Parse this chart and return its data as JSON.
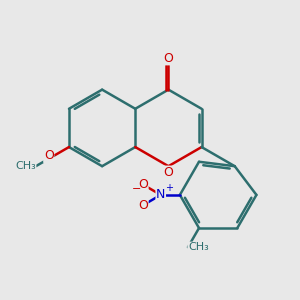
{
  "background_color": "#e8e8e8",
  "bond_color": "#2d6e6e",
  "oxygen_color": "#cc0000",
  "nitrogen_color": "#0000cc",
  "bond_width": 1.8,
  "figsize": [
    3.0,
    3.0
  ],
  "dpi": 100,
  "xlim": [
    -4.5,
    5.5
  ],
  "ylim": [
    -5.0,
    3.5
  ]
}
